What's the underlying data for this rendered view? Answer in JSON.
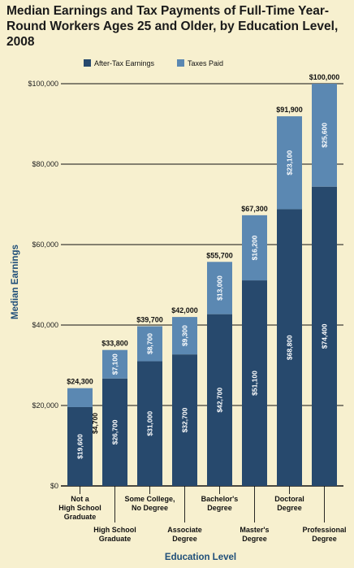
{
  "chart_data": {
    "type": "bar",
    "stacked": true,
    "title": "Median Earnings and Tax Payments of Full-Time Year-Round Workers Ages 25 and Older, by Education Level, 2008",
    "xlabel": "Education Level",
    "ylabel": "Median Earnings",
    "ylim": [
      0,
      100000
    ],
    "yticks": [
      "$0",
      "$20,000",
      "$40,000",
      "$60,000",
      "$80,000",
      "$100,000"
    ],
    "grid": true,
    "legend": "top",
    "categories": [
      [
        "Not a",
        "High School",
        "Graduate"
      ],
      [
        "High School",
        "Graduate"
      ],
      [
        "Some College,",
        "No Degree"
      ],
      [
        "Associate",
        "Degree"
      ],
      [
        "Bachelor's",
        "Degree"
      ],
      [
        "Master's",
        "Degree"
      ],
      [
        "Doctoral",
        "Degree"
      ],
      [
        "Professional",
        "Degree"
      ]
    ],
    "series": [
      {
        "name": "After-Tax Earnings",
        "color": "#27496d",
        "values": [
          19600,
          26700,
          31000,
          32700,
          42700,
          51100,
          68800,
          74400
        ],
        "labels": [
          "$19,600",
          "$26,700",
          "$31,000",
          "$32,700",
          "$42,700",
          "$51,100",
          "$68,800",
          "$74,400"
        ]
      },
      {
        "name": "Taxes Paid",
        "color": "#5b88b2",
        "values": [
          4700,
          7100,
          8700,
          9300,
          13000,
          16200,
          23100,
          25600
        ],
        "labels": [
          "$4,700",
          "$7,100",
          "$8,700",
          "$9,300",
          "$13,000",
          "$16,200",
          "$23,100",
          "$25,600"
        ]
      }
    ],
    "totals": [
      "$24,300",
      "$33,800",
      "$39,700",
      "$42,000",
      "$55,700",
      "$67,300",
      "$91,900",
      "$100,000"
    ]
  }
}
